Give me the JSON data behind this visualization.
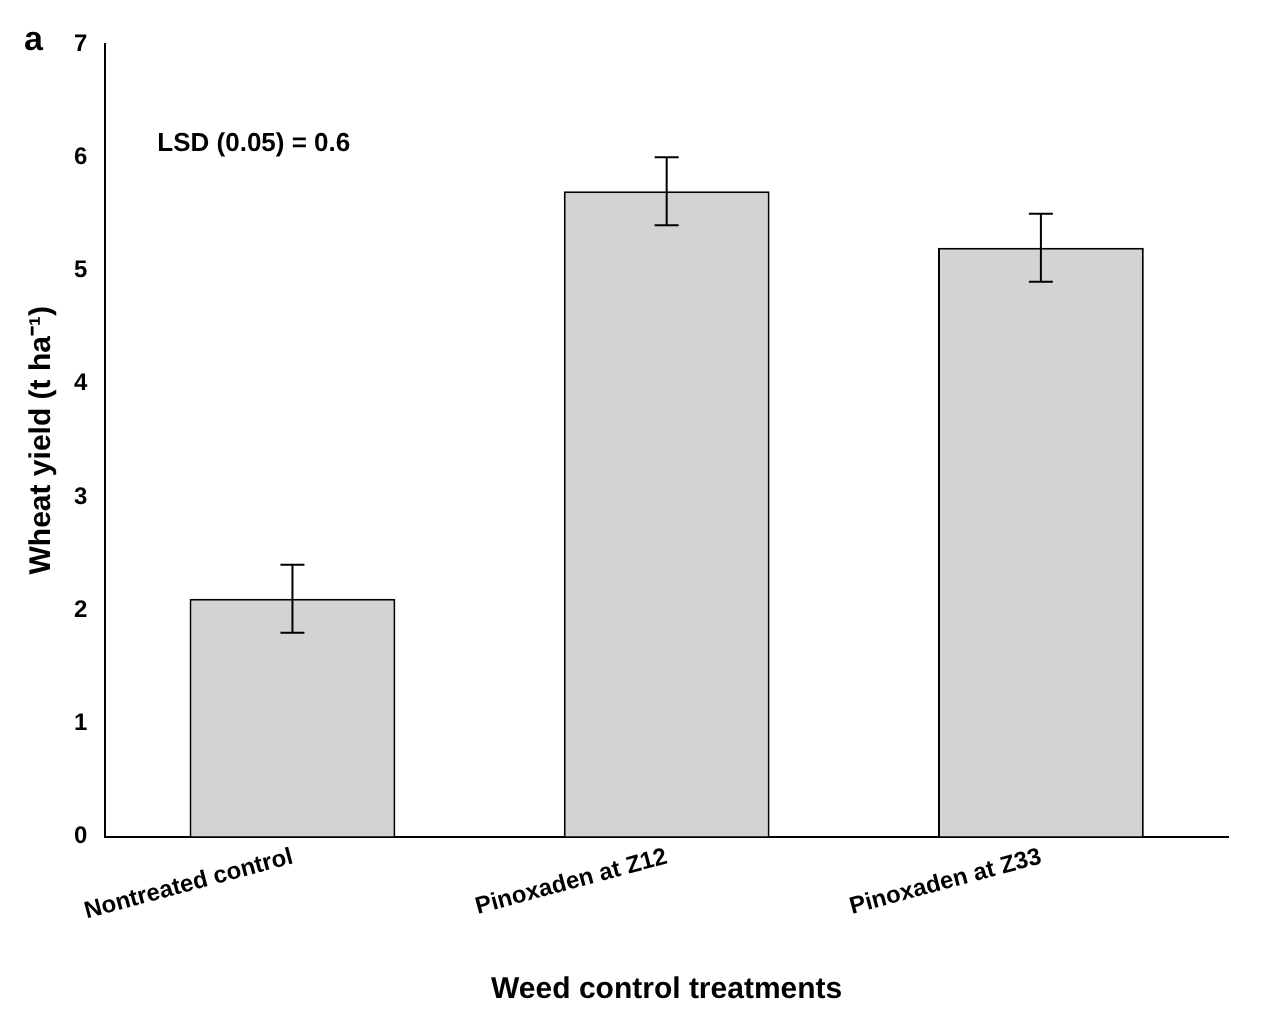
{
  "chart_data": {
    "type": "bar",
    "categories": [
      "Nontreated control",
      "Pinoxaden at Z12",
      "Pinoxaden at Z33"
    ],
    "values": [
      2.1,
      5.7,
      5.2
    ],
    "errors": [
      0.3,
      0.3,
      0.3
    ],
    "color": "#d3d3d3",
    "xlabel": "Weed control treatments",
    "ylabel": "Wheat yield (t ha⁻¹)",
    "ylim": [
      0,
      7
    ],
    "yticks": [
      0,
      1,
      2,
      3,
      4,
      5,
      6,
      7
    ],
    "annotations": [
      "a",
      "LSD (0.05) = 0.6"
    ],
    "grid": false,
    "legend": false
  }
}
